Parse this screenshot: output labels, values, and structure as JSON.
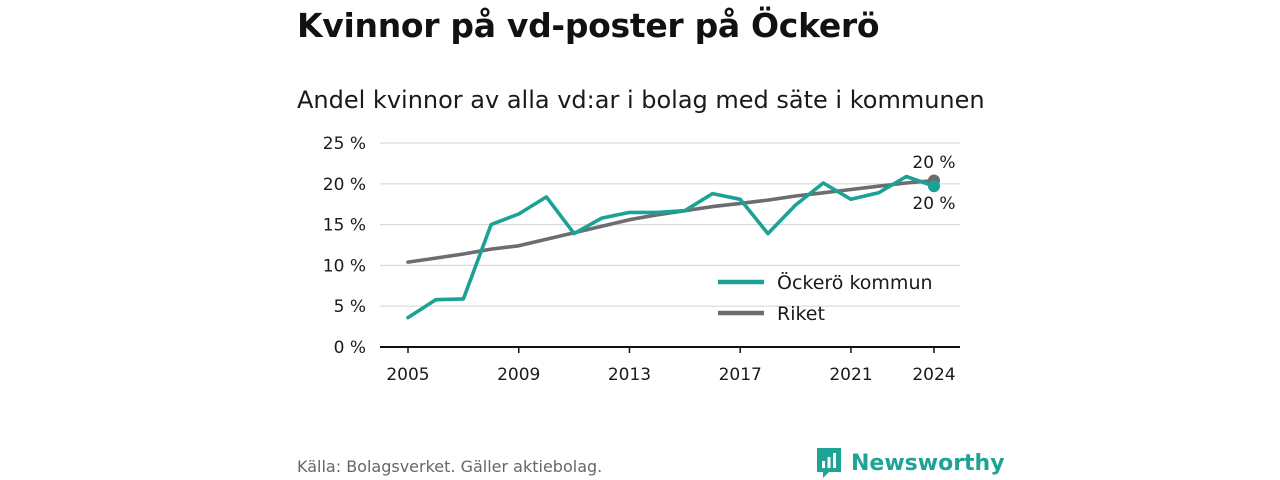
{
  "title": "Kvinnor på vd-poster på Öckerö",
  "subtitle": "Andel kvinnor av alla vd:ar i bolag med säte i kommunen",
  "source": "Källa: Bolagsverket. Gäller aktiebolag.",
  "brand": "Newsworthy",
  "brand_icon": "newsworthy-logo-icon",
  "colors": {
    "ockero": "#1aa394",
    "riket": "#6d6c72",
    "grid": "#d9d9d9",
    "axis": "#111111",
    "brand": "#1fa394"
  },
  "chart_data": {
    "type": "line",
    "x": [
      2005,
      2006,
      2007,
      2008,
      2009,
      2010,
      2011,
      2012,
      2013,
      2014,
      2015,
      2016,
      2017,
      2018,
      2019,
      2020,
      2021,
      2022,
      2023,
      2024
    ],
    "xticks": [
      "2005",
      "2009",
      "2013",
      "2017",
      "2021",
      "2024"
    ],
    "yticks": [
      "0 %",
      "5 %",
      "10 %",
      "15 %",
      "20 %",
      "25 %"
    ],
    "ylim": [
      0,
      25
    ],
    "xlim": [
      2005,
      2024
    ],
    "grid": true,
    "legend_position": "bottom-right",
    "series": [
      {
        "name": "Öckerö kommun",
        "color": "#1aa394",
        "values": [
          3.6,
          5.8,
          5.9,
          15.0,
          16.3,
          18.4,
          13.9,
          15.8,
          16.5,
          16.5,
          16.7,
          18.8,
          18.1,
          13.9,
          17.4,
          20.1,
          18.1,
          18.9,
          20.9,
          19.7
        ],
        "end_label": "20 %"
      },
      {
        "name": "Riket",
        "color": "#6d6c72",
        "values": [
          10.4,
          10.9,
          11.4,
          12.0,
          12.4,
          13.2,
          14.0,
          14.8,
          15.6,
          16.2,
          16.7,
          17.2,
          17.6,
          18.0,
          18.5,
          18.9,
          19.3,
          19.7,
          20.1,
          20.4
        ],
        "end_label": "20 %"
      }
    ]
  }
}
